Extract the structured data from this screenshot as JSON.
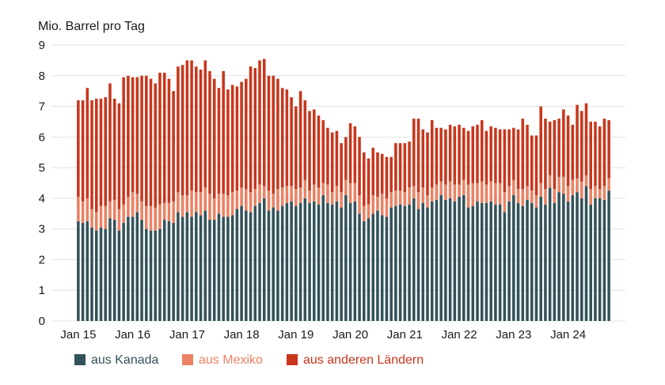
{
  "chart_data": {
    "type": "bar",
    "stacked": true,
    "ylabel": "Mio. Barrel pro Tag",
    "ylim": [
      0,
      9
    ],
    "y_ticks": [
      0,
      1,
      2,
      3,
      4,
      5,
      6,
      7,
      8,
      9
    ],
    "x_tick_labels": [
      "Jan 15",
      "Jan 16",
      "Jan 17",
      "Jan 18",
      "Jan 19",
      "Jan 20",
      "Jan 21",
      "Jan 22",
      "Jan 23",
      "Jan 24"
    ],
    "x_tick_months": [
      0,
      12,
      24,
      36,
      48,
      60,
      72,
      84,
      96,
      108
    ],
    "colors": {
      "kanada": "#33525a",
      "mexiko": "#ec8163",
      "andere": "#c8361c",
      "text": "#1a1a1a",
      "grid": "#e3e3e3"
    },
    "legend": [
      {
        "key": "kanada",
        "label": "aus Kanada"
      },
      {
        "key": "mexiko",
        "label": "aus Mexiko"
      },
      {
        "key": "andere",
        "label": "aus anderen Ländern"
      }
    ],
    "series": [
      {
        "name": "aus Kanada",
        "key": "kanada",
        "values": [
          3.25,
          3.2,
          3.25,
          3.05,
          2.95,
          3.05,
          3.0,
          3.35,
          3.3,
          2.95,
          3.2,
          3.4,
          3.4,
          3.55,
          3.3,
          3.0,
          2.95,
          2.95,
          3.0,
          3.3,
          3.25,
          3.2,
          3.55,
          3.4,
          3.55,
          3.4,
          3.55,
          3.45,
          3.6,
          3.3,
          3.3,
          3.5,
          3.4,
          3.4,
          3.45,
          3.65,
          3.75,
          3.6,
          3.55,
          3.75,
          3.85,
          4.0,
          3.6,
          3.7,
          3.6,
          3.75,
          3.85,
          3.9,
          3.75,
          3.85,
          4.0,
          3.85,
          3.9,
          3.8,
          4.1,
          3.85,
          3.8,
          3.9,
          3.7,
          4.1,
          3.85,
          3.9,
          3.5,
          3.25,
          3.35,
          3.5,
          3.6,
          3.45,
          3.4,
          3.7,
          3.75,
          3.8,
          3.75,
          3.8,
          4.0,
          3.65,
          3.85,
          3.7,
          3.9,
          3.95,
          4.1,
          3.95,
          4.0,
          3.9,
          4.05,
          4.1,
          3.7,
          3.75,
          3.9,
          3.85,
          3.85,
          3.9,
          3.8,
          3.8,
          3.55,
          3.9,
          4.1,
          3.85,
          3.75,
          3.95,
          3.85,
          3.7,
          4.05,
          3.8,
          4.35,
          3.85,
          4.2,
          4.15,
          3.9,
          4.1,
          4.2,
          4.0,
          4.4,
          3.8,
          4.0,
          4.0,
          3.95,
          4.25
        ]
      },
      {
        "name": "aus Mexiko",
        "key": "mexiko",
        "values": [
          0.8,
          0.7,
          0.75,
          0.6,
          0.6,
          0.7,
          0.75,
          0.55,
          0.65,
          0.7,
          0.6,
          0.65,
          0.8,
          0.6,
          0.6,
          0.75,
          0.8,
          0.75,
          0.8,
          0.55,
          0.6,
          0.7,
          0.65,
          0.7,
          0.55,
          0.85,
          0.65,
          0.75,
          0.75,
          0.85,
          0.7,
          0.65,
          0.75,
          0.7,
          0.75,
          0.6,
          0.6,
          0.7,
          0.65,
          0.55,
          0.6,
          0.4,
          0.65,
          0.45,
          0.7,
          0.6,
          0.55,
          0.5,
          0.55,
          0.5,
          0.6,
          0.4,
          0.55,
          0.55,
          0.4,
          0.6,
          0.4,
          0.5,
          0.5,
          0.5,
          0.65,
          0.6,
          0.6,
          0.5,
          0.45,
          0.6,
          0.45,
          0.7,
          0.6,
          0.5,
          0.5,
          0.45,
          0.45,
          0.55,
          0.4,
          0.55,
          0.5,
          0.4,
          0.45,
          0.5,
          0.45,
          0.5,
          0.55,
          0.55,
          0.4,
          0.5,
          0.75,
          0.75,
          0.6,
          0.7,
          0.6,
          0.65,
          0.7,
          0.7,
          0.65,
          0.5,
          0.5,
          0.45,
          0.55,
          0.45,
          0.4,
          0.4,
          0.45,
          0.5,
          0.4,
          0.45,
          0.5,
          0.55,
          0.5,
          0.5,
          0.45,
          0.55,
          0.35,
          0.5,
          0.4,
          0.3,
          0.45,
          0.4
        ]
      },
      {
        "name": "aus anderen Ländern",
        "key": "andere",
        "values": [
          3.15,
          3.3,
          3.6,
          3.55,
          3.7,
          3.5,
          3.55,
          3.85,
          3.3,
          3.45,
          4.15,
          3.95,
          3.75,
          3.8,
          4.1,
          4.25,
          4.15,
          4.05,
          4.3,
          4.25,
          4.05,
          3.6,
          4.1,
          4.25,
          4.4,
          4.25,
          4.1,
          4.0,
          4.15,
          4.0,
          3.9,
          3.45,
          4.0,
          3.45,
          3.5,
          3.4,
          3.45,
          3.6,
          4.1,
          3.95,
          4.05,
          4.15,
          3.75,
          3.85,
          3.6,
          3.25,
          3.15,
          2.9,
          2.7,
          3.15,
          2.6,
          2.6,
          2.45,
          2.35,
          2.05,
          1.85,
          1.95,
          1.8,
          1.6,
          1.4,
          1.95,
          1.85,
          1.9,
          1.75,
          1.5,
          1.55,
          1.45,
          1.3,
          1.35,
          1.15,
          1.55,
          1.55,
          1.6,
          1.5,
          2.2,
          2.4,
          1.9,
          2.05,
          2.2,
          1.85,
          1.75,
          1.8,
          1.85,
          1.9,
          1.95,
          1.7,
          1.75,
          1.85,
          1.9,
          2.0,
          1.75,
          1.8,
          1.8,
          1.75,
          2.05,
          1.85,
          1.7,
          1.95,
          2.3,
          2.0,
          1.8,
          1.95,
          2.5,
          2.3,
          1.75,
          2.25,
          1.9,
          2.2,
          2.3,
          1.8,
          2.4,
          2.3,
          2.35,
          2.2,
          2.1,
          2.05,
          2.2,
          1.9
        ]
      }
    ]
  }
}
